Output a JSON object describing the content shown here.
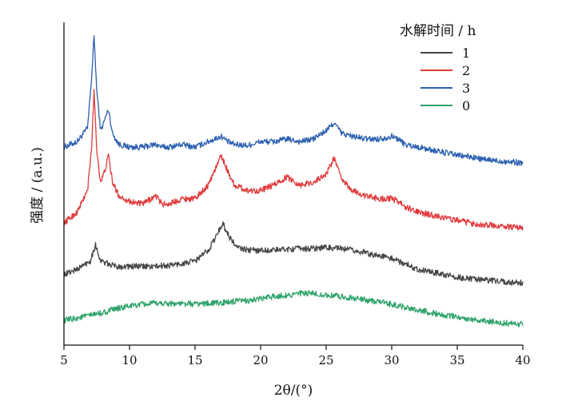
{
  "chart_data": {
    "type": "line",
    "xlabel": "2θ/(°)",
    "ylabel": "强度 / (a.u.)",
    "xlim": [
      5,
      40
    ],
    "x_ticks": [
      "5",
      "10",
      "15",
      "20",
      "25",
      "30",
      "35",
      "40"
    ],
    "legend": {
      "title": "水解时间 / h",
      "placement": "top-right",
      "entries": [
        {
          "label": "1",
          "color": "#444444"
        },
        {
          "label": "2",
          "color": "#e0393b"
        },
        {
          "label": "3",
          "color": "#2b5fb0"
        },
        {
          "label": "0",
          "color": "#2fa36b"
        }
      ]
    },
    "series": [
      {
        "name": "3",
        "color": "#2b5fb0",
        "x": [
          5,
          6,
          6.8,
          7.1,
          7.3,
          7.5,
          7.8,
          8.1,
          8.4,
          8.7,
          9.2,
          10,
          11,
          12,
          12.5,
          13,
          14,
          15,
          16,
          17,
          17.5,
          18,
          19,
          20,
          21,
          22,
          23,
          24,
          25,
          25.6,
          26.2,
          27,
          28,
          29,
          30,
          30.5,
          31,
          32,
          33,
          34,
          35,
          36,
          37,
          38,
          39,
          40
        ],
        "y": [
          3.25,
          3.35,
          3.6,
          4.5,
          5.3,
          4.3,
          3.55,
          3.75,
          3.95,
          3.5,
          3.3,
          3.25,
          3.25,
          3.3,
          3.25,
          3.25,
          3.3,
          3.25,
          3.35,
          3.45,
          3.35,
          3.3,
          3.28,
          3.35,
          3.35,
          3.4,
          3.35,
          3.4,
          3.55,
          3.7,
          3.5,
          3.45,
          3.4,
          3.4,
          3.45,
          3.4,
          3.3,
          3.25,
          3.2,
          3.15,
          3.1,
          3.07,
          3.02,
          3.0,
          2.98,
          2.96
        ]
      },
      {
        "name": "2",
        "color": "#e0393b",
        "x": [
          5,
          6,
          6.8,
          7.1,
          7.3,
          7.5,
          7.8,
          8.1,
          8.4,
          8.7,
          9.2,
          10,
          11,
          12,
          12.5,
          13,
          14,
          15,
          16,
          17,
          17.5,
          18,
          19,
          20,
          21,
          22,
          23,
          24,
          25,
          25.6,
          26.2,
          27,
          28,
          29,
          30,
          30.5,
          31,
          32,
          33,
          34,
          35,
          36,
          37,
          38,
          39,
          40
        ],
        "y": [
          1.85,
          2.05,
          2.45,
          3.2,
          4.3,
          3.2,
          2.6,
          2.8,
          3.1,
          2.6,
          2.35,
          2.25,
          2.2,
          2.35,
          2.2,
          2.2,
          2.3,
          2.3,
          2.55,
          3.1,
          2.8,
          2.55,
          2.45,
          2.45,
          2.55,
          2.7,
          2.55,
          2.6,
          2.75,
          3.05,
          2.65,
          2.45,
          2.35,
          2.3,
          2.3,
          2.25,
          2.15,
          2.05,
          2.0,
          1.95,
          1.9,
          1.85,
          1.82,
          1.8,
          1.78,
          1.75
        ]
      },
      {
        "name": "1",
        "color": "#444444",
        "x": [
          5,
          6,
          7,
          7.4,
          7.8,
          8.3,
          9,
          10,
          11,
          12,
          13,
          14,
          15,
          16,
          16.6,
          17.1,
          17.6,
          18.2,
          19,
          20,
          21,
          22,
          23,
          24,
          25,
          26,
          27,
          28,
          29,
          30,
          31,
          32,
          33,
          34,
          35,
          36,
          37,
          38,
          39,
          40
        ],
        "y": [
          0.9,
          1.0,
          1.15,
          1.45,
          1.15,
          1.1,
          1.05,
          1.05,
          1.05,
          1.05,
          1.07,
          1.1,
          1.15,
          1.35,
          1.6,
          1.85,
          1.6,
          1.4,
          1.35,
          1.35,
          1.35,
          1.37,
          1.38,
          1.38,
          1.4,
          1.38,
          1.35,
          1.3,
          1.25,
          1.2,
          1.1,
          1.0,
          0.95,
          0.9,
          0.85,
          0.82,
          0.8,
          0.78,
          0.76,
          0.75
        ]
      },
      {
        "name": "0",
        "color": "#2fa36b",
        "x": [
          5,
          6,
          7,
          8,
          9,
          10,
          11,
          12,
          13,
          14,
          15,
          16,
          17,
          18,
          19,
          20,
          21,
          22,
          23,
          24,
          25,
          26,
          27,
          28,
          29,
          30,
          31,
          32,
          33,
          34,
          35,
          36,
          37,
          38,
          39,
          40
        ],
        "y": [
          0.05,
          0.1,
          0.15,
          0.2,
          0.27,
          0.32,
          0.35,
          0.37,
          0.37,
          0.36,
          0.36,
          0.37,
          0.38,
          0.4,
          0.42,
          0.45,
          0.5,
          0.52,
          0.55,
          0.55,
          0.52,
          0.5,
          0.47,
          0.43,
          0.4,
          0.35,
          0.3,
          0.25,
          0.2,
          0.15,
          0.12,
          0.08,
          0.05,
          0.02,
          0.0,
          -0.02
        ]
      }
    ]
  }
}
